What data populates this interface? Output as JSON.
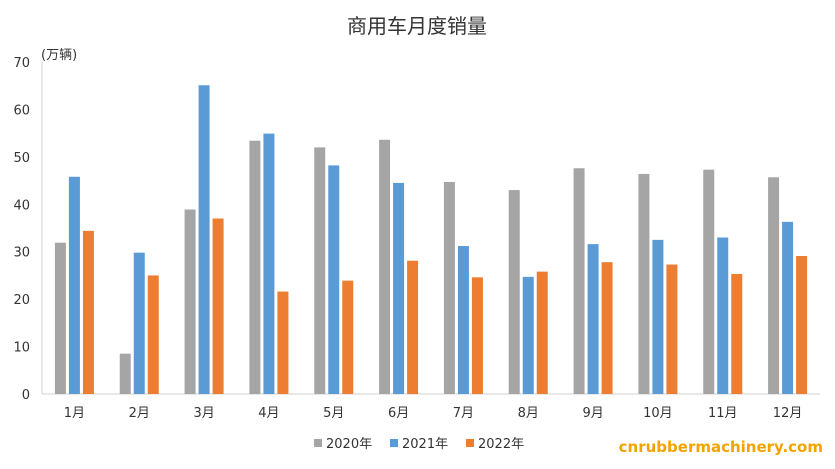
{
  "chart_data": {
    "type": "bar",
    "title": "商用车月度销量",
    "y_unit": "(万辆)",
    "categories": [
      "1月",
      "2月",
      "3月",
      "4月",
      "5月",
      "6月",
      "7月",
      "8月",
      "9月",
      "10月",
      "11月",
      "12月"
    ],
    "series": [
      {
        "name": "2020年",
        "color": "#a5a5a5",
        "values": [
          31.9,
          8.5,
          38.9,
          53.4,
          52.0,
          53.6,
          44.7,
          43.0,
          47.6,
          46.4,
          47.3,
          45.7
        ]
      },
      {
        "name": "2021年",
        "color": "#5b9bd5",
        "values": [
          45.8,
          29.8,
          65.1,
          54.9,
          48.2,
          44.5,
          31.2,
          24.7,
          31.6,
          32.5,
          33.0,
          36.3
        ]
      },
      {
        "name": "2022年",
        "color": "#ed7d31",
        "values": [
          34.4,
          25.0,
          37.0,
          21.6,
          23.9,
          28.1,
          24.6,
          25.8,
          27.8,
          27.3,
          25.3,
          29.1
        ]
      }
    ],
    "ylim": [
      0,
      70
    ],
    "yticks": [
      0,
      10,
      20,
      30,
      40,
      50,
      60,
      70
    ],
    "grid": false,
    "legend_position": "bottom"
  },
  "watermark": "cnrubbermachinery.com"
}
